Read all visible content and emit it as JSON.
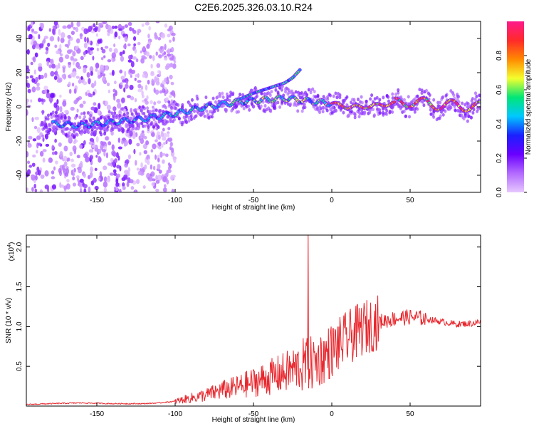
{
  "title": "C2E6.2025.326.03.10.R24",
  "colors": {
    "snr_line": "#e8272d",
    "colormap": [
      "#e6c8ff",
      "#b36bff",
      "#6a00ff",
      "#1a20ff",
      "#00c8ff",
      "#00e676",
      "#f4ff2e",
      "#ff8a00",
      "#ff2a2a",
      "#ff1a8c"
    ]
  },
  "chart_data": [
    {
      "type": "heatmap",
      "title": "",
      "xlabel": "Height of straight line (km)",
      "ylabel": "Frequency (Hz)",
      "xlim": [
        -195,
        95
      ],
      "ylim": [
        -50,
        50
      ],
      "x_ticks": [
        -150,
        -100,
        -50,
        0,
        50
      ],
      "y_ticks": [
        -40,
        -20,
        0,
        20,
        40
      ],
      "grid": false,
      "ridge": {
        "description_points_x": [
          -175,
          -160,
          -140,
          -120,
          -100,
          -80,
          -60,
          -45,
          -30,
          -20,
          -10,
          0,
          10,
          20,
          30,
          40,
          50,
          60,
          70,
          80,
          90
        ],
        "frequency_hz": [
          -10,
          -11,
          -9,
          -7,
          -4,
          0,
          3,
          4,
          5,
          4,
          3,
          2,
          0,
          0,
          1,
          2,
          3,
          2,
          1,
          1,
          0
        ]
      },
      "upper_branch": {
        "x": [
          -60,
          -50,
          -40,
          -30,
          -25,
          -20
        ],
        "frequency_hz": [
          4,
          8,
          11,
          14,
          17,
          22
        ]
      },
      "colorbar": {
        "label": "Normalized spectral amplitude",
        "range": [
          0.0,
          1.0
        ],
        "ticks": [
          0.0,
          0.2,
          0.4,
          0.6,
          0.8
        ]
      }
    },
    {
      "type": "line",
      "title": "",
      "xlabel": "Height of straight line (km)",
      "ylabel": "SNR (10 * v/v)",
      "y_multiplier_label": "(x10",
      "y_multiplier_exp": "4",
      "xlim": [
        -195,
        95
      ],
      "ylim": [
        0,
        2.15
      ],
      "x_ticks": [
        -150,
        -100,
        -50,
        0,
        50
      ],
      "y_ticks": [
        0.5,
        1.0,
        1.5,
        2.0
      ],
      "series": [
        {
          "x": [
            -195,
            -180,
            -160,
            -140,
            -120,
            -110,
            -100,
            -90,
            -80,
            -70,
            -60,
            -50,
            -40,
            -30,
            -20,
            -15,
            -10,
            0,
            10,
            20,
            30,
            40,
            50,
            60,
            70,
            80,
            90,
            95
          ],
          "values": [
            0.02,
            0.03,
            0.04,
            0.03,
            0.03,
            0.04,
            0.06,
            0.1,
            0.14,
            0.2,
            0.24,
            0.3,
            0.36,
            0.42,
            0.5,
            2.15,
            0.55,
            0.7,
            0.85,
            0.98,
            1.06,
            1.1,
            1.12,
            1.1,
            1.06,
            1.03,
            1.04,
            1.06
          ]
        }
      ]
    }
  ]
}
